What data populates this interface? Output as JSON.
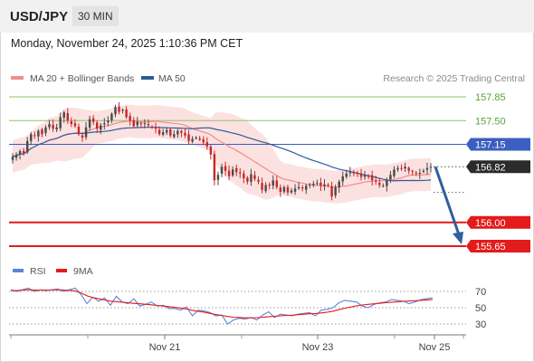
{
  "header": {
    "pair": "USD/JPY",
    "timeframe": "30 MIN",
    "timestamp": "Monday, November 24, 2025 1:10:36 PM CET"
  },
  "legend": {
    "items": [
      {
        "label": "MA 20 + Bollinger Bands",
        "color": "#f08c8c"
      },
      {
        "label": "MA 50",
        "color": "#2e5b9a"
      }
    ],
    "credit": "Research © 2025 Trading Central"
  },
  "colors": {
    "support": "#e31b1b",
    "pivot": "#3b5fc0",
    "resistance": "#8dc56a",
    "last_price": "#2b2b2b",
    "arrow": "#2f5f9c",
    "candle_up": "#4a4a4a",
    "candle_down": "#c62828",
    "bollinger_fill": "#fbdcdc",
    "ma20": "#f08c8c",
    "ma50": "#2e5b9a"
  },
  "chart_data": [
    {
      "type": "candlestick",
      "instrument": "USD/JPY",
      "timeframe": "30 MIN",
      "x_ticks": [
        "Nov 21",
        "Nov 23",
        "Nov 25"
      ],
      "y_range": [
        155.55,
        158.05
      ],
      "levels": [
        {
          "value": 157.85,
          "label": "157.85",
          "kind": "resistance"
        },
        {
          "value": 157.5,
          "label": "157.50",
          "kind": "resistance"
        },
        {
          "value": 157.15,
          "label": "157.15",
          "kind": "pivot"
        },
        {
          "value": 156.82,
          "label": "156.82",
          "kind": "last"
        },
        {
          "value": 156.0,
          "label": "156.00",
          "kind": "support"
        },
        {
          "value": 155.65,
          "label": "155.65",
          "kind": "support"
        }
      ],
      "forecast_arrow": {
        "from": 156.82,
        "to": 155.65
      },
      "closes": [
        156.97,
        157.0,
        157.05,
        157.02,
        157.2,
        157.3,
        157.28,
        157.35,
        157.3,
        157.4,
        157.45,
        157.38,
        157.4,
        157.55,
        157.62,
        157.5,
        157.45,
        157.42,
        157.3,
        157.25,
        157.4,
        157.52,
        157.48,
        157.38,
        157.43,
        157.46,
        157.5,
        157.6,
        157.7,
        157.63,
        157.66,
        157.55,
        157.5,
        157.42,
        157.48,
        157.45,
        157.46,
        157.43,
        157.4,
        157.38,
        157.3,
        157.33,
        157.36,
        157.28,
        157.3,
        157.35,
        157.32,
        157.28,
        157.2,
        157.23,
        157.25,
        157.22,
        157.18,
        157.12,
        157.0,
        156.62,
        156.7,
        156.82,
        156.76,
        156.68,
        156.78,
        156.74,
        156.72,
        156.65,
        156.6,
        156.71,
        156.64,
        156.6,
        156.48,
        156.55,
        156.55,
        156.62,
        156.52,
        156.45,
        156.52,
        156.44,
        156.47,
        156.5,
        156.52,
        156.5,
        156.54,
        156.56,
        156.57,
        156.58,
        156.54,
        156.56,
        156.55,
        156.38,
        156.52,
        156.6,
        156.68,
        156.72,
        156.74,
        156.73,
        156.71,
        156.67,
        156.7,
        156.68,
        156.62,
        156.6,
        156.55,
        156.54,
        156.62,
        156.7,
        156.78,
        156.8,
        156.79,
        156.82,
        156.76,
        156.75,
        156.72,
        156.73,
        156.76,
        156.8,
        156.82
      ]
    },
    {
      "type": "line",
      "title": "RSI",
      "series": [
        {
          "name": "RSI",
          "color": "#5b84d9",
          "values": [
            72,
            70,
            72,
            74,
            70,
            72,
            71,
            72,
            73,
            70,
            72,
            74,
            66,
            55,
            63,
            58,
            62,
            53,
            64,
            57,
            55,
            61,
            52,
            54,
            57,
            52,
            53,
            49,
            49,
            47,
            51,
            40,
            47,
            46,
            44,
            40,
            41,
            30,
            35,
            37,
            36,
            38,
            35,
            41,
            45,
            38,
            42,
            41,
            40,
            42,
            43,
            44,
            40,
            47,
            48,
            50,
            56,
            59,
            58,
            57,
            52,
            50,
            54,
            56,
            57,
            60,
            59,
            58,
            55,
            57,
            60,
            61,
            62
          ]
        },
        {
          "name": "9MA",
          "color": "#e31b1b",
          "values": [
            71,
            71,
            71.5,
            72,
            71.5,
            71.5,
            71.5,
            71.7,
            72,
            71.5,
            71.3,
            70.5,
            68,
            64.5,
            62.5,
            61,
            59.5,
            58,
            57.5,
            56.8,
            56,
            55.3,
            54.8,
            54.2,
            53.6,
            52.8,
            52,
            51.2,
            50.4,
            49.6,
            48.5,
            46.8,
            45.5,
            44.5,
            43,
            41.5,
            40.6,
            39.2,
            38.3,
            38,
            37.6,
            37.6,
            37.8,
            38.2,
            39,
            39.4,
            40,
            40.4,
            40.8,
            41.4,
            42,
            42.6,
            42.9,
            43.6,
            44.5,
            45.8,
            47.6,
            49.3,
            50.8,
            52.3,
            53.3,
            54.1,
            54.8,
            55.5,
            56.2,
            56.8,
            57.3,
            57.8,
            58.2,
            58.6,
            59,
            59.5,
            60
          ]
        }
      ],
      "y_ticks": [
        70,
        50,
        30
      ],
      "y_range": [
        20,
        80
      ],
      "legend": [
        "RSI",
        "9MA"
      ]
    }
  ]
}
